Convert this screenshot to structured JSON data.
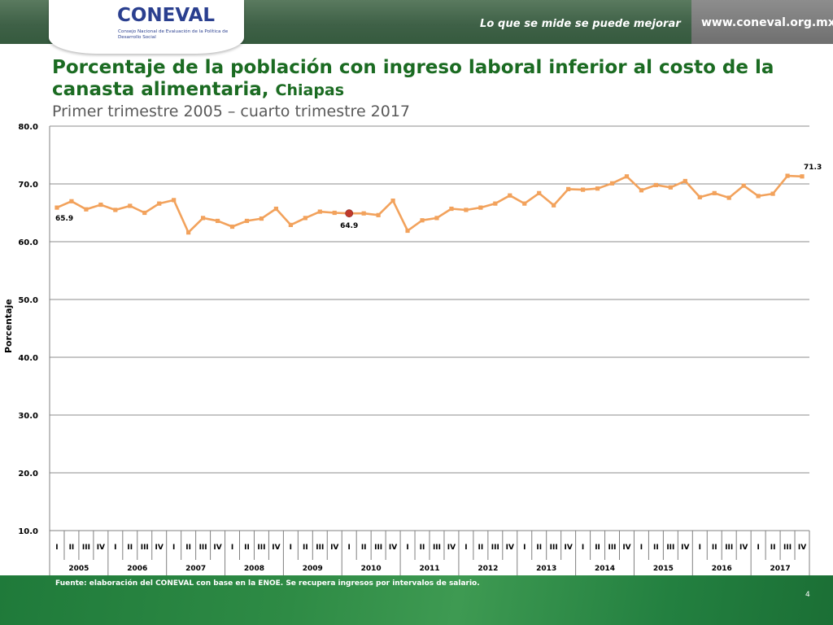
{
  "header": {
    "logo_text": "CONEVAL",
    "logo_subtitle": "Consejo Nacional de Evaluación de la Política de Desarrollo Social",
    "tagline": "Lo que se mide se puede mejorar",
    "website": "www.coneval.org.mx",
    "colors": {
      "band": "#3f6147",
      "right_band": "#7a7a7a",
      "logo": "#2a3f8f"
    }
  },
  "slide": {
    "title_main": "Porcentaje de la población con ingreso laboral inferior al costo de la canasta alimentaria,",
    "title_region": "Chiapas",
    "subtitle": "Primer trimestre 2005 – cuarto trimestre 2017",
    "source": "Fuente: elaboración del CONEVAL con base en la ENOE. Se recupera ingresos por intervalos de salario.",
    "page_number": "4"
  },
  "chart_data": {
    "type": "line",
    "title": "Porcentaje de la población con ingreso laboral inferior al costo de la canasta alimentaria, Chiapas",
    "subtitle": "Primer trimestre 2005 – cuarto trimestre 2017",
    "xlabel": "",
    "ylabel": "Porcentaje",
    "ylim": [
      10,
      80
    ],
    "yticks": [
      "10.0",
      "20.0",
      "30.0",
      "40.0",
      "50.0",
      "60.0",
      "70.0",
      "80.0"
    ],
    "grid": true,
    "legend": "none",
    "line_color": "#f2a25c",
    "highlight_color": "#c0392b",
    "years": [
      "2005",
      "2006",
      "2007",
      "2008",
      "2009",
      "2010",
      "2011",
      "2012",
      "2013",
      "2014",
      "2015",
      "2016",
      "2017"
    ],
    "quarters": [
      "I",
      "II",
      "III",
      "IV"
    ],
    "series": [
      {
        "values": [
          65.9,
          67.0,
          65.6,
          66.4,
          65.5,
          66.2,
          65.0,
          66.6,
          67.2,
          61.6,
          64.1,
          63.6,
          62.6,
          63.6,
          64.0,
          65.7,
          62.9,
          64.1,
          65.2,
          65.0,
          64.9,
          64.9,
          64.6,
          67.1,
          61.9,
          63.7,
          64.1,
          65.7,
          65.5,
          65.9,
          66.6,
          68.0,
          66.6,
          68.4,
          66.3,
          69.1,
          69.0,
          69.2,
          70.1,
          71.3,
          68.9,
          69.8,
          69.4,
          70.5,
          67.7,
          68.4,
          67.6,
          69.7,
          67.9,
          68.3,
          71.4,
          71.3
        ]
      }
    ],
    "data_labels": [
      {
        "index": 0,
        "text": "65.9"
      },
      {
        "index": 20,
        "text": "64.9"
      },
      {
        "index": 51,
        "text": "71.3"
      }
    ],
    "highlight_index": 20
  }
}
